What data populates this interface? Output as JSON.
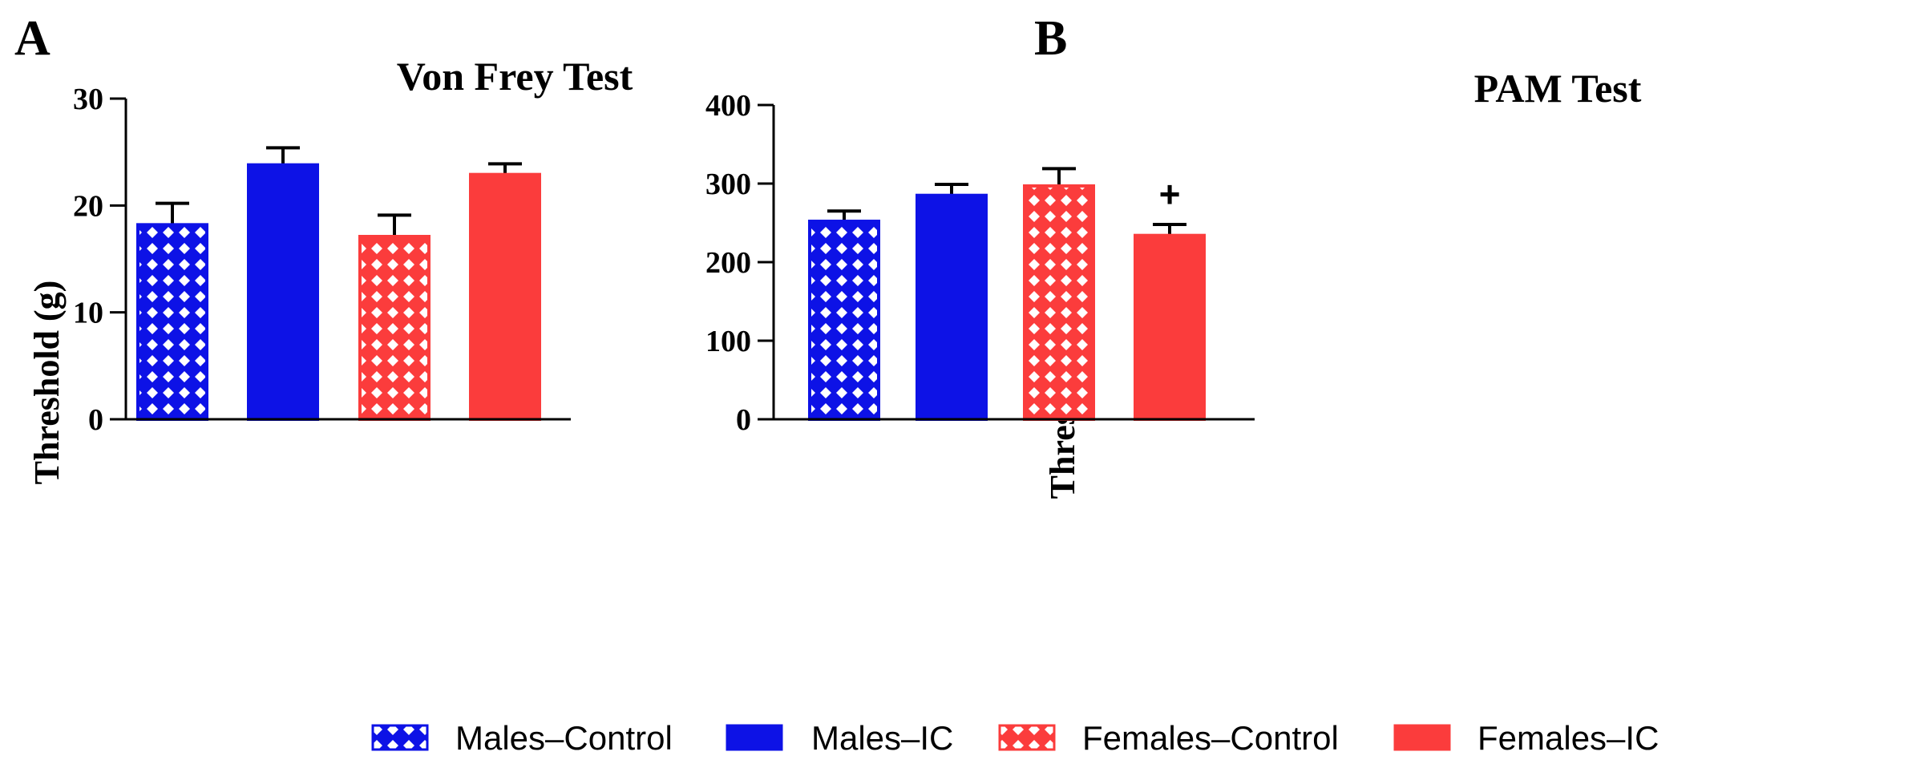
{
  "colors": {
    "blue": "#0d12e6",
    "red": "#fb3c3c",
    "axis": "#000000"
  },
  "legend": [
    {
      "label": "Males–Control",
      "color": "#0d12e6",
      "pattern": "crosshatch"
    },
    {
      "label": "Males–IC",
      "color": "#0d12e6",
      "pattern": "solid"
    },
    {
      "label": "Females–Control",
      "color": "#fb3c3c",
      "pattern": "crosshatch"
    },
    {
      "label": "Females–IC",
      "color": "#fb3c3c",
      "pattern": "solid"
    }
  ],
  "chart_data": [
    {
      "panel": "A",
      "type": "bar",
      "title": "Von Frey Test",
      "xlabel": "",
      "ylabel": "Threshold (g)",
      "ylim": [
        0,
        30
      ],
      "yticks": [
        0,
        10,
        20,
        30
      ],
      "categories": [
        "Males–Control",
        "Males–IC",
        "Females–Control",
        "Females–IC"
      ],
      "values": [
        18.2,
        23.8,
        17.1,
        22.9
      ],
      "errors": [
        2.0,
        1.6,
        2.0,
        1.0
      ],
      "annotations": []
    },
    {
      "panel": "B",
      "type": "bar",
      "title": "PAM Test",
      "xlabel": "",
      "ylabel": "Threshold (g)",
      "ylim": [
        0,
        400
      ],
      "yticks": [
        0,
        100,
        200,
        300,
        400
      ],
      "categories": [
        "Males–Control",
        "Males–IC",
        "Females–Control",
        "Females–IC"
      ],
      "values": [
        252,
        285,
        297,
        234
      ],
      "errors": [
        13,
        14,
        22,
        14
      ],
      "annotations": [
        {
          "category": "Females–IC",
          "text": "+"
        }
      ]
    }
  ]
}
